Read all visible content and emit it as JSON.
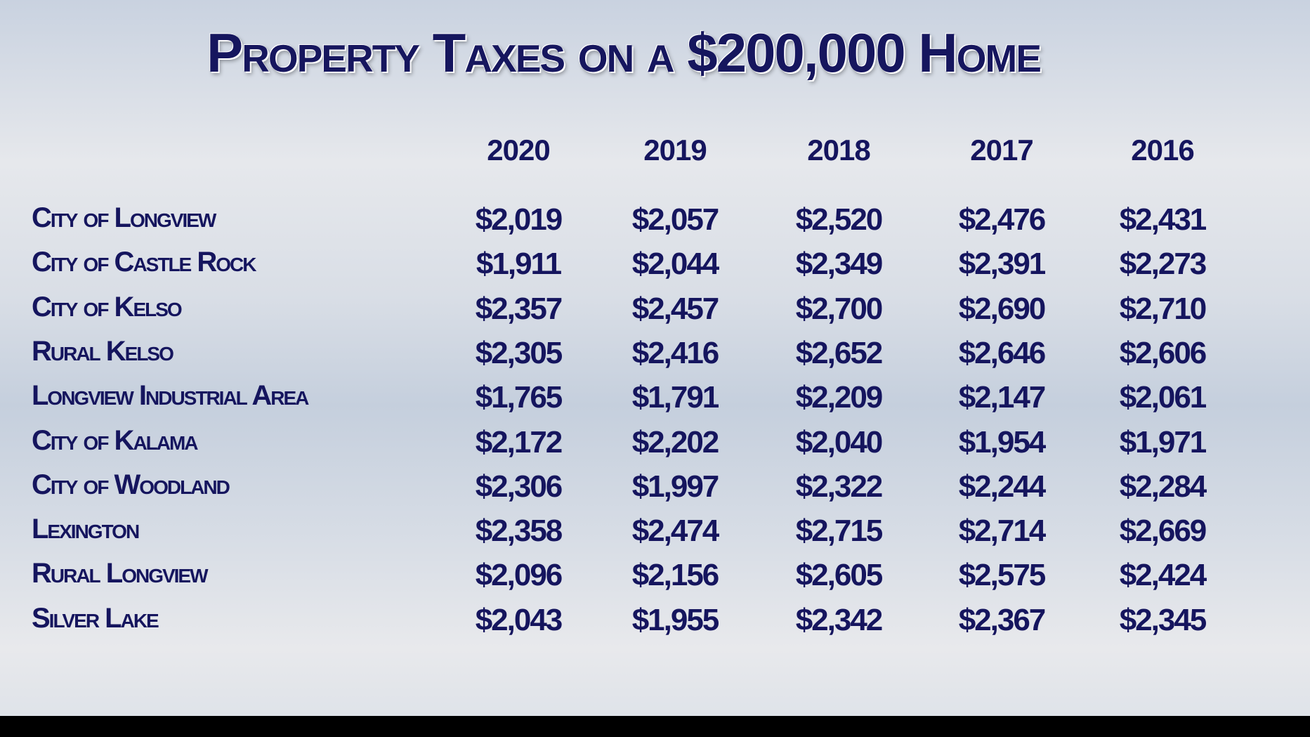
{
  "title": "Property Taxes on a $200,000 Home",
  "years": [
    "2020",
    "2019",
    "2018",
    "2017",
    "2016"
  ],
  "rows": [
    {
      "name": "City of Longview",
      "values": [
        "$2,019",
        "$2,057",
        "$2,520",
        "$2,476",
        "$2,431"
      ]
    },
    {
      "name": "City of Castle Rock",
      "values": [
        "$1,911",
        "$2,044",
        "$2,349",
        "$2,391",
        "$2,273"
      ]
    },
    {
      "name": "City of Kelso",
      "values": [
        "$2,357",
        "$2,457",
        "$2,700",
        "$2,690",
        "$2,710"
      ]
    },
    {
      "name": "Rural Kelso",
      "values": [
        "$2,305",
        "$2,416",
        "$2,652",
        "$2,646",
        "$2,606"
      ]
    },
    {
      "name": "Longview Industrial Area",
      "values": [
        "$1,765",
        "$1,791",
        "$2,209",
        "$2,147",
        "$2,061"
      ]
    },
    {
      "name": "City of Kalama",
      "values": [
        "$2,172",
        "$2,202",
        "$2,040",
        "$1,954",
        "$1,971"
      ]
    },
    {
      "name": "City of Woodland",
      "values": [
        "$2,306",
        "$1,997",
        "$2,322",
        "$2,244",
        "$2,284"
      ]
    },
    {
      "name": "Lexington",
      "values": [
        "$2,358",
        "$2,474",
        "$2,715",
        "$2,714",
        "$2,669"
      ]
    },
    {
      "name": "Rural Longview",
      "values": [
        "$2,096",
        "$2,156",
        "$2,605",
        "$2,575",
        "$2,424"
      ]
    },
    {
      "name": "Silver Lake",
      "values": [
        "$2,043",
        "$1,955",
        "$2,342",
        "$2,367",
        "$2,345"
      ]
    }
  ]
}
